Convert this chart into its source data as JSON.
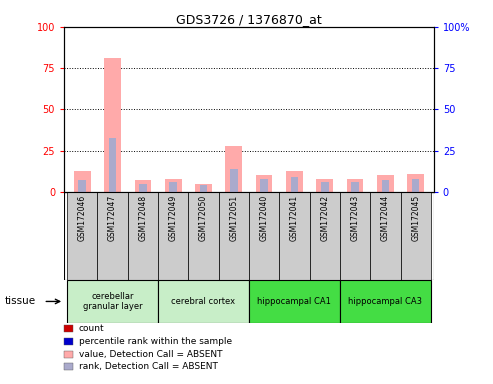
{
  "title": "GDS3726 / 1376870_at",
  "samples": [
    "GSM172046",
    "GSM172047",
    "GSM172048",
    "GSM172049",
    "GSM172050",
    "GSM172051",
    "GSM172040",
    "GSM172041",
    "GSM172042",
    "GSM172043",
    "GSM172044",
    "GSM172045"
  ],
  "absent_value_values": [
    13,
    81,
    7,
    8,
    5,
    28,
    10,
    13,
    8,
    8,
    10,
    11
  ],
  "absent_rank_values": [
    7,
    33,
    5,
    6,
    4,
    14,
    8,
    9,
    6,
    6,
    7,
    8
  ],
  "ylim": [
    0,
    100
  ],
  "yticks": [
    0,
    25,
    50,
    75,
    100
  ],
  "tissues": [
    {
      "label": "cerebellar\ngranular layer",
      "start": 0,
      "end": 3,
      "color": "#c8eec8"
    },
    {
      "label": "cerebral cortex",
      "start": 3,
      "end": 6,
      "color": "#c8eec8"
    },
    {
      "label": "hippocampal CA1",
      "start": 6,
      "end": 9,
      "color": "#44dd44"
    },
    {
      "label": "hippocampal CA3",
      "start": 9,
      "end": 12,
      "color": "#44dd44"
    }
  ],
  "color_count": "#cc0000",
  "color_rank": "#0000cc",
  "color_absent_value": "#ffaaaa",
  "color_absent_rank": "#aaaacc",
  "legend_items": [
    {
      "label": "count",
      "color": "#cc0000"
    },
    {
      "label": "percentile rank within the sample",
      "color": "#0000cc"
    },
    {
      "label": "value, Detection Call = ABSENT",
      "color": "#ffaaaa"
    },
    {
      "label": "rank, Detection Call = ABSENT",
      "color": "#aaaacc"
    }
  ],
  "tissue_label": "tissue",
  "bar_bg_color": "#cccccc"
}
